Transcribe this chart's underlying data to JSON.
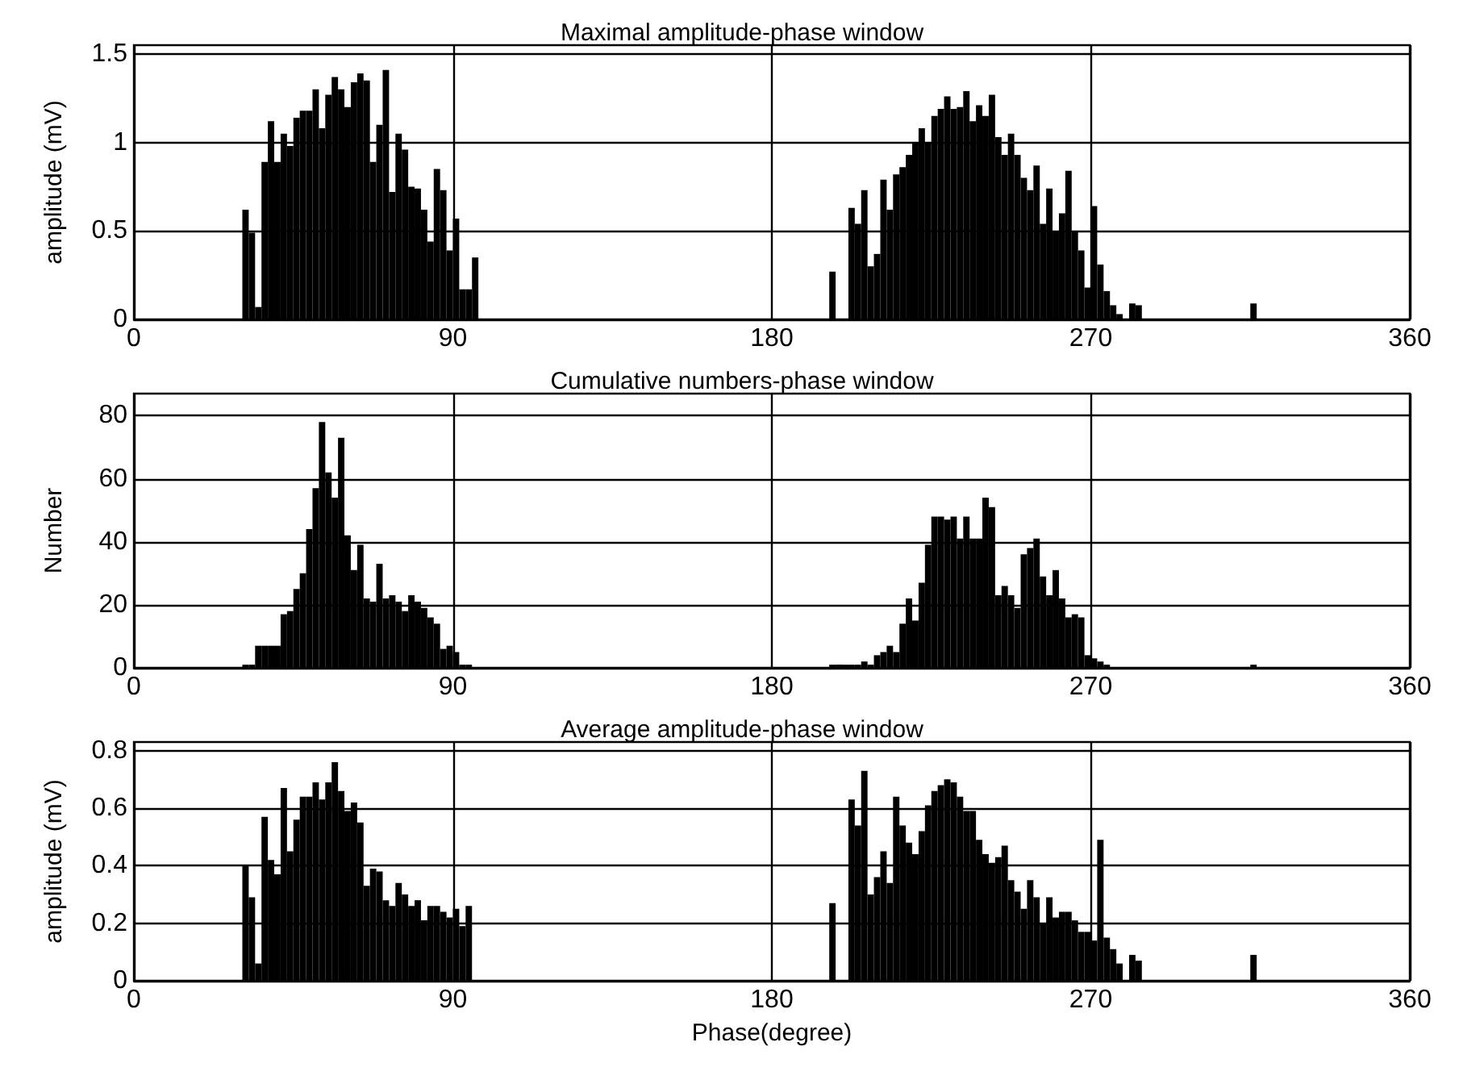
{
  "chart_data": [
    {
      "type": "bar",
      "title": "Maximal amplitude-phase window",
      "ylabel": "amplitude (mV)",
      "color": "#000000",
      "grid": true,
      "xlim": [
        0,
        360
      ],
      "xticks": [
        0,
        90,
        180,
        270,
        360
      ],
      "ylim": [
        0,
        1.55
      ],
      "yticks": [
        0,
        0.5,
        1,
        1.5
      ],
      "x": [
        31.5,
        33.3,
        35.1,
        36.9,
        38.7,
        40.5,
        42.3,
        44.1,
        45.9,
        47.7,
        49.5,
        51.3,
        53.1,
        54.9,
        56.7,
        58.5,
        60.3,
        62.1,
        63.9,
        65.7,
        67.5,
        69.3,
        71.1,
        72.9,
        74.7,
        76.5,
        78.3,
        80.1,
        81.9,
        83.7,
        85.5,
        87.3,
        89.1,
        90.9,
        92.7,
        94.5,
        96.3,
        197.1,
        202.5,
        204.3,
        206.1,
        207.9,
        209.7,
        211.5,
        213.3,
        215.1,
        216.9,
        218.7,
        220.5,
        222.3,
        224.1,
        225.9,
        227.7,
        229.5,
        231.3,
        233.1,
        234.9,
        236.7,
        238.5,
        240.3,
        242.1,
        243.9,
        245.7,
        247.5,
        249.3,
        251.1,
        252.9,
        254.7,
        256.5,
        258.3,
        260.1,
        261.9,
        263.7,
        265.5,
        267.3,
        269.1,
        270.9,
        272.7,
        274.5,
        276.3,
        278.1,
        281.7,
        283.5,
        315.9
      ],
      "values": [
        0.62,
        0.49,
        0.07,
        0.89,
        1.12,
        0.89,
        1.05,
        0.98,
        1.14,
        1.18,
        1.18,
        1.3,
        1.08,
        1.27,
        1.37,
        1.3,
        1.2,
        1.34,
        1.39,
        1.35,
        0.89,
        1.1,
        1.41,
        0.72,
        1.05,
        0.96,
        0.75,
        0.74,
        0.62,
        0.44,
        0.85,
        0.73,
        0.39,
        0.57,
        0.17,
        0.17,
        0.35,
        0.27,
        0.63,
        0.54,
        0.73,
        0.3,
        0.37,
        0.79,
        0.62,
        0.82,
        0.86,
        0.93,
        1.0,
        1.08,
        1.0,
        1.15,
        1.19,
        1.26,
        1.19,
        1.2,
        1.29,
        1.12,
        1.21,
        1.15,
        1.27,
        1.03,
        0.93,
        1.05,
        0.93,
        0.8,
        0.73,
        0.87,
        0.54,
        0.74,
        0.5,
        0.6,
        0.84,
        0.5,
        0.39,
        0.18,
        0.64,
        0.31,
        0.16,
        0.08,
        0.03,
        0.09,
        0.08,
        0.09
      ]
    },
    {
      "type": "bar",
      "title": "Cumulative numbers-phase window",
      "ylabel": "Number",
      "color": "#000000",
      "grid": true,
      "xlim": [
        0,
        360
      ],
      "xticks": [
        0,
        90,
        180,
        270,
        360
      ],
      "ylim": [
        0,
        87
      ],
      "yticks": [
        0,
        20,
        40,
        60,
        80
      ],
      "x": [
        31.5,
        33.3,
        35.1,
        36.9,
        38.7,
        40.5,
        42.3,
        44.1,
        45.9,
        47.7,
        49.5,
        51.3,
        53.1,
        54.9,
        56.7,
        58.5,
        60.3,
        62.1,
        63.9,
        65.7,
        67.5,
        69.3,
        71.1,
        72.9,
        74.7,
        76.5,
        78.3,
        80.1,
        81.9,
        83.7,
        85.5,
        87.3,
        89.1,
        90.9,
        92.7,
        94.5,
        197.1,
        198.9,
        200.7,
        202.5,
        204.3,
        206.1,
        207.9,
        209.7,
        211.5,
        213.3,
        215.1,
        216.9,
        218.7,
        220.5,
        222.3,
        224.1,
        225.9,
        227.7,
        229.5,
        231.3,
        233.1,
        234.9,
        236.7,
        238.5,
        240.3,
        242.1,
        243.9,
        245.7,
        247.5,
        249.3,
        251.1,
        252.9,
        254.7,
        256.5,
        258.3,
        260.1,
        261.9,
        263.7,
        265.5,
        267.3,
        269.1,
        270.9,
        272.7,
        274.5,
        315.9
      ],
      "values": [
        1,
        1,
        7,
        7,
        7,
        7,
        17,
        18,
        25,
        30,
        44,
        57,
        78,
        62,
        54,
        73,
        42,
        31,
        39,
        22,
        21,
        33,
        22,
        23,
        21,
        18,
        23,
        21,
        19,
        16,
        14,
        6,
        7,
        5,
        1,
        1,
        1,
        1,
        1,
        1,
        1,
        2,
        1,
        4,
        5,
        7,
        5,
        14,
        22,
        15,
        27,
        39,
        48,
        48,
        47,
        48,
        41,
        48,
        41,
        41,
        54,
        51,
        23,
        26,
        23,
        19,
        36,
        38,
        41,
        29,
        23,
        31,
        22,
        16,
        17,
        16,
        4,
        3,
        2,
        1,
        1
      ]
    },
    {
      "type": "bar",
      "title": "Average amplitude-phase window",
      "xlabel": "Phase(degree)",
      "ylabel": "amplitude (mV)",
      "color": "#000000",
      "grid": true,
      "xlim": [
        0,
        360
      ],
      "xticks": [
        0,
        90,
        180,
        270,
        360
      ],
      "ylim": [
        0,
        0.83
      ],
      "yticks": [
        0,
        0.2,
        0.4,
        0.6,
        0.8
      ],
      "x": [
        31.5,
        33.3,
        35.1,
        36.9,
        38.7,
        40.5,
        42.3,
        44.1,
        45.9,
        47.7,
        49.5,
        51.3,
        53.1,
        54.9,
        56.7,
        58.5,
        60.3,
        62.1,
        63.9,
        65.7,
        67.5,
        69.3,
        71.1,
        72.9,
        74.7,
        76.5,
        78.3,
        80.1,
        81.9,
        83.7,
        85.5,
        87.3,
        89.1,
        90.9,
        92.7,
        94.5,
        197.1,
        202.5,
        204.3,
        206.1,
        207.9,
        209.7,
        211.5,
        213.3,
        215.1,
        216.9,
        218.7,
        220.5,
        222.3,
        224.1,
        225.9,
        227.7,
        229.5,
        231.3,
        233.1,
        234.9,
        236.7,
        238.5,
        240.3,
        242.1,
        243.9,
        245.7,
        247.5,
        249.3,
        251.1,
        252.9,
        254.7,
        256.5,
        258.3,
        260.1,
        261.9,
        263.7,
        265.5,
        267.3,
        269.1,
        270.9,
        272.7,
        274.5,
        276.3,
        278.1,
        281.7,
        283.5,
        315.9
      ],
      "values": [
        0.4,
        0.29,
        0.06,
        0.57,
        0.42,
        0.37,
        0.67,
        0.45,
        0.56,
        0.64,
        0.64,
        0.69,
        0.63,
        0.69,
        0.76,
        0.66,
        0.59,
        0.62,
        0.55,
        0.33,
        0.39,
        0.38,
        0.28,
        0.26,
        0.34,
        0.3,
        0.26,
        0.28,
        0.21,
        0.26,
        0.26,
        0.24,
        0.22,
        0.25,
        0.19,
        0.26,
        0.27,
        0.63,
        0.54,
        0.73,
        0.3,
        0.36,
        0.45,
        0.34,
        0.64,
        0.54,
        0.48,
        0.44,
        0.52,
        0.61,
        0.66,
        0.68,
        0.7,
        0.69,
        0.64,
        0.59,
        0.59,
        0.49,
        0.44,
        0.41,
        0.43,
        0.47,
        0.35,
        0.31,
        0.25,
        0.35,
        0.29,
        0.2,
        0.29,
        0.22,
        0.24,
        0.24,
        0.21,
        0.17,
        0.17,
        0.14,
        0.49,
        0.15,
        0.11,
        0.06,
        0.09,
        0.07,
        0.09
      ]
    }
  ]
}
